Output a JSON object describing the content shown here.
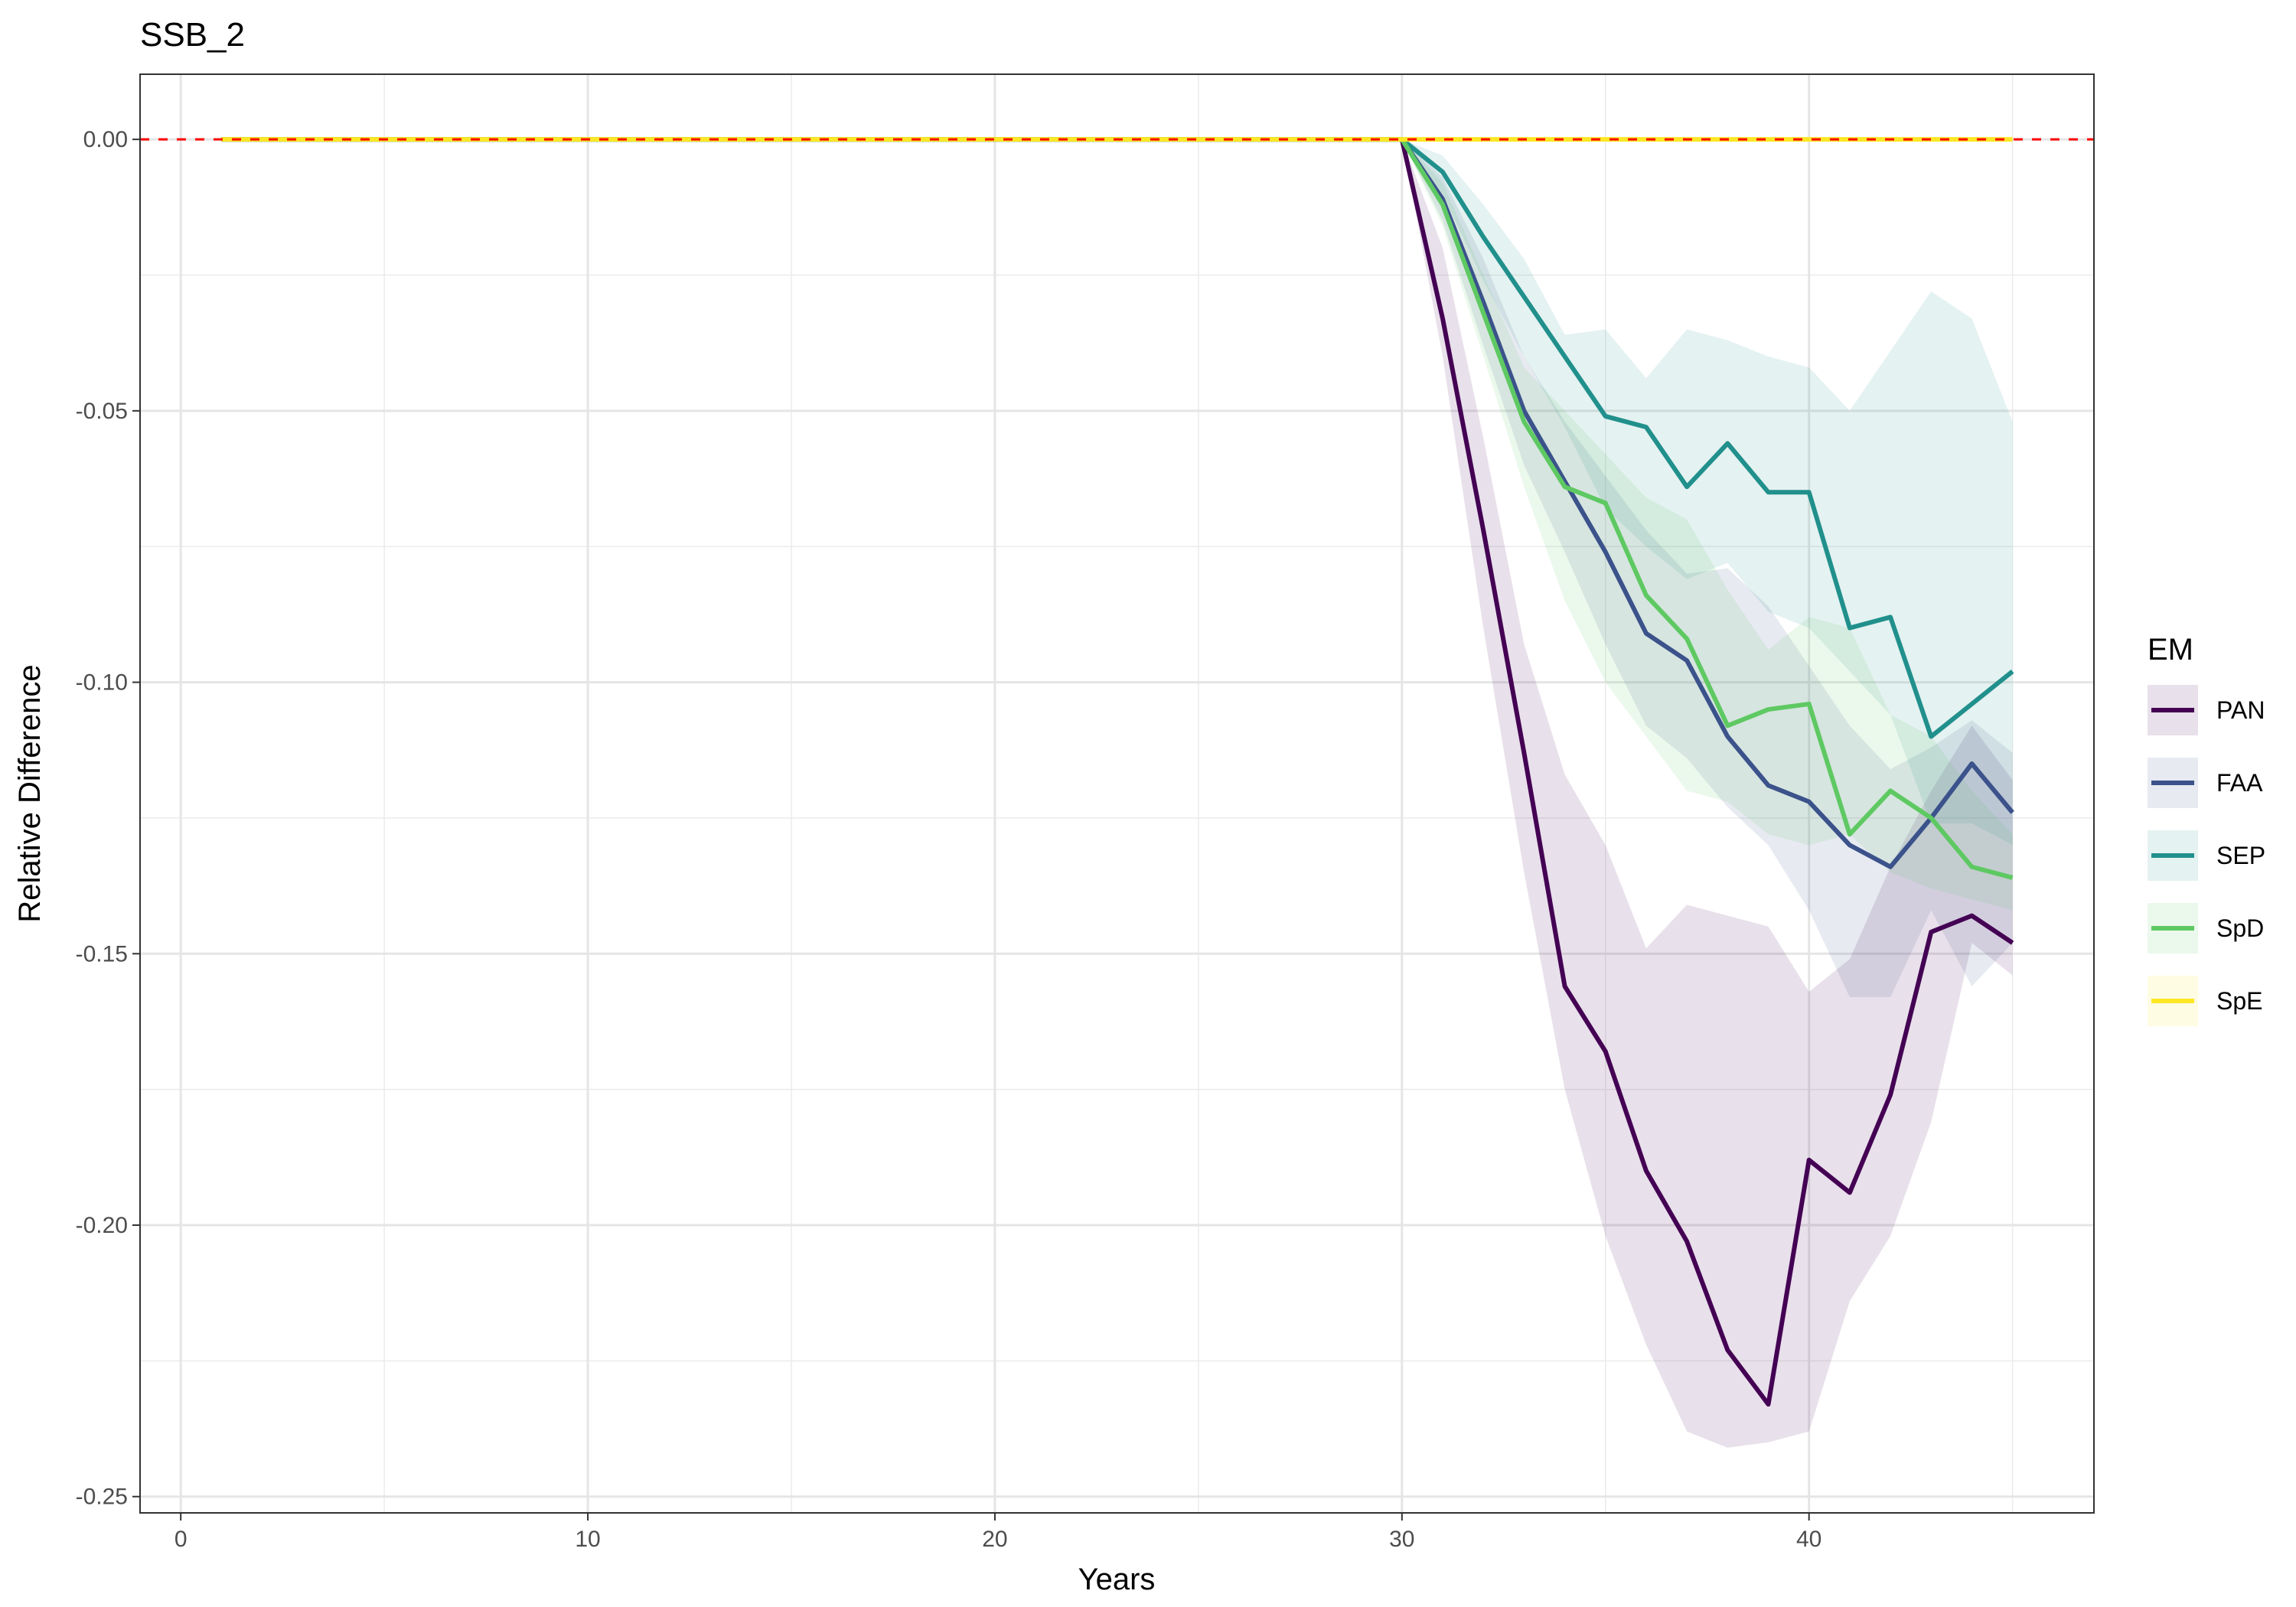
{
  "chart_data": {
    "type": "line",
    "title": "SSB_2",
    "xlabel": "Years",
    "ylabel": "Relative Difference",
    "xlim": [
      -1,
      47
    ],
    "ylim": [
      -0.253,
      0.012
    ],
    "x_ticks": [
      0,
      10,
      20,
      30,
      40
    ],
    "x_tick_labels": [
      "0",
      "10",
      "20",
      "30",
      "40"
    ],
    "y_ticks": [
      0.0,
      -0.05,
      -0.1,
      -0.15,
      -0.2,
      -0.25
    ],
    "y_tick_labels": [
      "0.00",
      "-0.05",
      "-0.10",
      "-0.15",
      "-0.20",
      "-0.25"
    ],
    "grid": true,
    "legend": {
      "title": "EM",
      "position": "right"
    },
    "reference_line": {
      "y": 0,
      "color": "#ff0000",
      "style": "dashed"
    },
    "x": [
      1,
      2,
      3,
      4,
      5,
      6,
      7,
      8,
      9,
      10,
      11,
      12,
      13,
      14,
      15,
      16,
      17,
      18,
      19,
      20,
      21,
      22,
      23,
      24,
      25,
      26,
      27,
      28,
      29,
      30,
      31,
      32,
      33,
      34,
      35,
      36,
      37,
      38,
      39,
      40,
      41,
      42,
      43,
      44,
      45
    ],
    "series": [
      {
        "name": "PAN",
        "color": "#440154",
        "values": [
          0,
          0,
          0,
          0,
          0,
          0,
          0,
          0,
          0,
          0,
          0,
          0,
          0,
          0,
          0,
          0,
          0,
          0,
          0,
          0,
          0,
          0,
          0,
          0,
          0,
          0,
          0,
          0,
          0,
          0,
          -0.033,
          -0.072,
          -0.113,
          -0.156,
          -0.168,
          -0.19,
          -0.203,
          -0.223,
          -0.233,
          -0.188,
          -0.194,
          -0.176,
          -0.146,
          -0.143,
          -0.148
        ],
        "lower": [
          0,
          0,
          0,
          0,
          0,
          0,
          0,
          0,
          0,
          0,
          0,
          0,
          0,
          0,
          0,
          0,
          0,
          0,
          0,
          0,
          0,
          0,
          0,
          0,
          0,
          0,
          0,
          0,
          0,
          0,
          -0.04,
          -0.09,
          -0.135,
          -0.175,
          -0.202,
          -0.222,
          -0.238,
          -0.241,
          -0.24,
          -0.238,
          -0.214,
          -0.202,
          -0.181,
          -0.148,
          -0.154
        ],
        "upper": [
          0,
          0,
          0,
          0,
          0,
          0,
          0,
          0,
          0,
          0,
          0,
          0,
          0,
          0,
          0,
          0,
          0,
          0,
          0,
          0,
          0,
          0,
          0,
          0,
          0,
          0,
          0,
          0,
          0,
          0,
          -0.02,
          -0.055,
          -0.093,
          -0.117,
          -0.13,
          -0.149,
          -0.141,
          -0.143,
          -0.145,
          -0.157,
          -0.151,
          -0.134,
          -0.12,
          -0.108,
          -0.118
        ]
      },
      {
        "name": "FAA",
        "color": "#3b528b",
        "values": [
          0,
          0,
          0,
          0,
          0,
          0,
          0,
          0,
          0,
          0,
          0,
          0,
          0,
          0,
          0,
          0,
          0,
          0,
          0,
          0,
          0,
          0,
          0,
          0,
          0,
          0,
          0,
          0,
          0,
          0,
          -0.011,
          -0.03,
          -0.05,
          -0.063,
          -0.076,
          -0.091,
          -0.096,
          -0.11,
          -0.119,
          -0.122,
          -0.13,
          -0.134,
          -0.125,
          -0.115,
          -0.124
        ],
        "lower": [
          0,
          0,
          0,
          0,
          0,
          0,
          0,
          0,
          0,
          0,
          0,
          0,
          0,
          0,
          0,
          0,
          0,
          0,
          0,
          0,
          0,
          0,
          0,
          0,
          0,
          0,
          0,
          0,
          0,
          0,
          -0.015,
          -0.038,
          -0.06,
          -0.076,
          -0.093,
          -0.108,
          -0.114,
          -0.123,
          -0.13,
          -0.142,
          -0.158,
          -0.158,
          -0.142,
          -0.156,
          -0.148
        ],
        "upper": [
          0,
          0,
          0,
          0,
          0,
          0,
          0,
          0,
          0,
          0,
          0,
          0,
          0,
          0,
          0,
          0,
          0,
          0,
          0,
          0,
          0,
          0,
          0,
          0,
          0,
          0,
          0,
          0,
          0,
          0,
          -0.007,
          -0.022,
          -0.04,
          -0.052,
          -0.062,
          -0.072,
          -0.08,
          -0.079,
          -0.086,
          -0.097,
          -0.108,
          -0.116,
          -0.112,
          -0.107,
          -0.113
        ]
      },
      {
        "name": "SEP",
        "color": "#21908c",
        "values": [
          0,
          0,
          0,
          0,
          0,
          0,
          0,
          0,
          0,
          0,
          0,
          0,
          0,
          0,
          0,
          0,
          0,
          0,
          0,
          0,
          0,
          0,
          0,
          0,
          0,
          0,
          0,
          0,
          0,
          0,
          -0.006,
          -0.018,
          -0.029,
          -0.04,
          -0.051,
          -0.053,
          -0.064,
          -0.056,
          -0.065,
          -0.065,
          -0.09,
          -0.088,
          -0.11,
          -0.104,
          -0.098
        ],
        "lower": [
          0,
          0,
          0,
          0,
          0,
          0,
          0,
          0,
          0,
          0,
          0,
          0,
          0,
          0,
          0,
          0,
          0,
          0,
          0,
          0,
          0,
          0,
          0,
          0,
          0,
          0,
          0,
          0,
          0,
          0,
          -0.01,
          -0.026,
          -0.04,
          -0.053,
          -0.068,
          -0.075,
          -0.081,
          -0.078,
          -0.087,
          -0.09,
          -0.098,
          -0.106,
          -0.126,
          -0.126,
          -0.13
        ],
        "upper": [
          0,
          0,
          0,
          0,
          0,
          0,
          0,
          0,
          0,
          0,
          0,
          0,
          0,
          0,
          0,
          0,
          0,
          0,
          0,
          0,
          0,
          0,
          0,
          0,
          0,
          0,
          0,
          0,
          0,
          0,
          -0.003,
          -0.012,
          -0.022,
          -0.036,
          -0.035,
          -0.044,
          -0.035,
          -0.037,
          -0.04,
          -0.042,
          -0.05,
          -0.039,
          -0.028,
          -0.033,
          -0.052
        ]
      },
      {
        "name": "SpD",
        "color": "#5ec962",
        "values": [
          0,
          0,
          0,
          0,
          0,
          0,
          0,
          0,
          0,
          0,
          0,
          0,
          0,
          0,
          0,
          0,
          0,
          0,
          0,
          0,
          0,
          0,
          0,
          0,
          0,
          0,
          0,
          0,
          0,
          0,
          -0.012,
          -0.032,
          -0.052,
          -0.064,
          -0.067,
          -0.084,
          -0.092,
          -0.108,
          -0.105,
          -0.104,
          -0.128,
          -0.12,
          -0.125,
          -0.134,
          -0.136
        ],
        "lower": [
          0,
          0,
          0,
          0,
          0,
          0,
          0,
          0,
          0,
          0,
          0,
          0,
          0,
          0,
          0,
          0,
          0,
          0,
          0,
          0,
          0,
          0,
          0,
          0,
          0,
          0,
          0,
          0,
          0,
          0,
          -0.016,
          -0.04,
          -0.064,
          -0.085,
          -0.1,
          -0.11,
          -0.12,
          -0.122,
          -0.128,
          -0.13,
          -0.128,
          -0.135,
          -0.138,
          -0.14,
          -0.142
        ],
        "upper": [
          0,
          0,
          0,
          0,
          0,
          0,
          0,
          0,
          0,
          0,
          0,
          0,
          0,
          0,
          0,
          0,
          0,
          0,
          0,
          0,
          0,
          0,
          0,
          0,
          0,
          0,
          0,
          0,
          0,
          0,
          -0.008,
          -0.025,
          -0.042,
          -0.05,
          -0.058,
          -0.066,
          -0.07,
          -0.083,
          -0.094,
          -0.088,
          -0.09,
          -0.106,
          -0.11,
          -0.12,
          -0.128
        ]
      },
      {
        "name": "SpE",
        "color": "#fde725",
        "values": [
          0,
          0,
          0,
          0,
          0,
          0,
          0,
          0,
          0,
          0,
          0,
          0,
          0,
          0,
          0,
          0,
          0,
          0,
          0,
          0,
          0,
          0,
          0,
          0,
          0,
          0,
          0,
          0,
          0,
          0,
          0,
          0,
          0,
          0,
          0,
          0,
          0,
          0,
          0,
          0,
          0,
          0,
          0,
          0,
          0
        ],
        "lower": [
          0,
          0,
          0,
          0,
          0,
          0,
          0,
          0,
          0,
          0,
          0,
          0,
          0,
          0,
          0,
          0,
          0,
          0,
          0,
          0,
          0,
          0,
          0,
          0,
          0,
          0,
          0,
          0,
          0,
          0,
          0,
          0,
          0,
          0,
          0,
          0,
          0,
          0,
          0,
          0,
          0,
          0,
          0,
          0,
          0
        ],
        "upper": [
          0,
          0,
          0,
          0,
          0,
          0,
          0,
          0,
          0,
          0,
          0,
          0,
          0,
          0,
          0,
          0,
          0,
          0,
          0,
          0,
          0,
          0,
          0,
          0,
          0,
          0,
          0,
          0,
          0,
          0,
          0,
          0,
          0,
          0,
          0,
          0,
          0,
          0,
          0,
          0,
          0,
          0,
          0,
          0,
          0
        ]
      }
    ]
  }
}
